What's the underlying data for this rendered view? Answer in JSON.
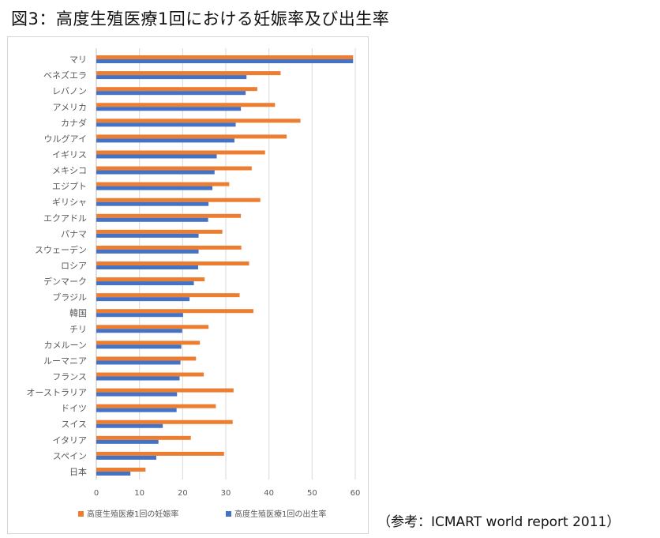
{
  "title": "図3：高度生殖医療1回における妊娠率及び出生率",
  "source": "（参考：ICMART world report 2011）",
  "colors": {
    "pregnancy": "#ED7D31",
    "birth": "#4472C4",
    "grid": "#d9d9d9",
    "axis_text": "#595959"
  },
  "chart_data": {
    "type": "bar",
    "orientation": "horizontal",
    "categories": [
      "マリ",
      "ベネズエラ",
      "レバノン",
      "アメリカ",
      "カナダ",
      "ウルグアイ",
      "イギリス",
      "メキシコ",
      "エジプト",
      "ギリシャ",
      "エクアドル",
      "パナマ",
      "スウェーデン",
      "ロシア",
      "デンマーク",
      "ブラジル",
      "韓国",
      "チリ",
      "カメルーン",
      "ルーマニア",
      "フランス",
      "オーストラリア",
      "ドイツ",
      "スイス",
      "イタリア",
      "スペイン",
      "日本"
    ],
    "series": [
      {
        "name": "高度生殖医療1回の妊娠率",
        "color": "#ED7D31",
        "values": [
          59.5,
          42.7,
          37.3,
          41.4,
          47.3,
          44.1,
          39.1,
          36,
          30.8,
          38,
          33.5,
          29.2,
          33.6,
          35.4,
          25.1,
          33.2,
          36.4,
          26,
          24,
          23.1,
          24.9,
          31.8,
          27.7,
          31.6,
          21.9,
          29.6,
          11.4
        ]
      },
      {
        "name": "高度生殖医療1回の出生率",
        "color": "#4472C4",
        "values": [
          59.5,
          34.8,
          34.6,
          33.5,
          32.3,
          32,
          27.9,
          27.4,
          26.9,
          26,
          25.9,
          23.7,
          23.7,
          23.6,
          22.6,
          21.6,
          20.1,
          19.9,
          19.7,
          19.5,
          19.3,
          18.7,
          18.6,
          15.4,
          14.4,
          13.9,
          7.9
        ]
      }
    ],
    "xlim": [
      0,
      60
    ],
    "xticks": [
      0,
      10,
      20,
      30,
      40,
      50,
      60
    ],
    "grid": true,
    "legend": "bottom"
  }
}
